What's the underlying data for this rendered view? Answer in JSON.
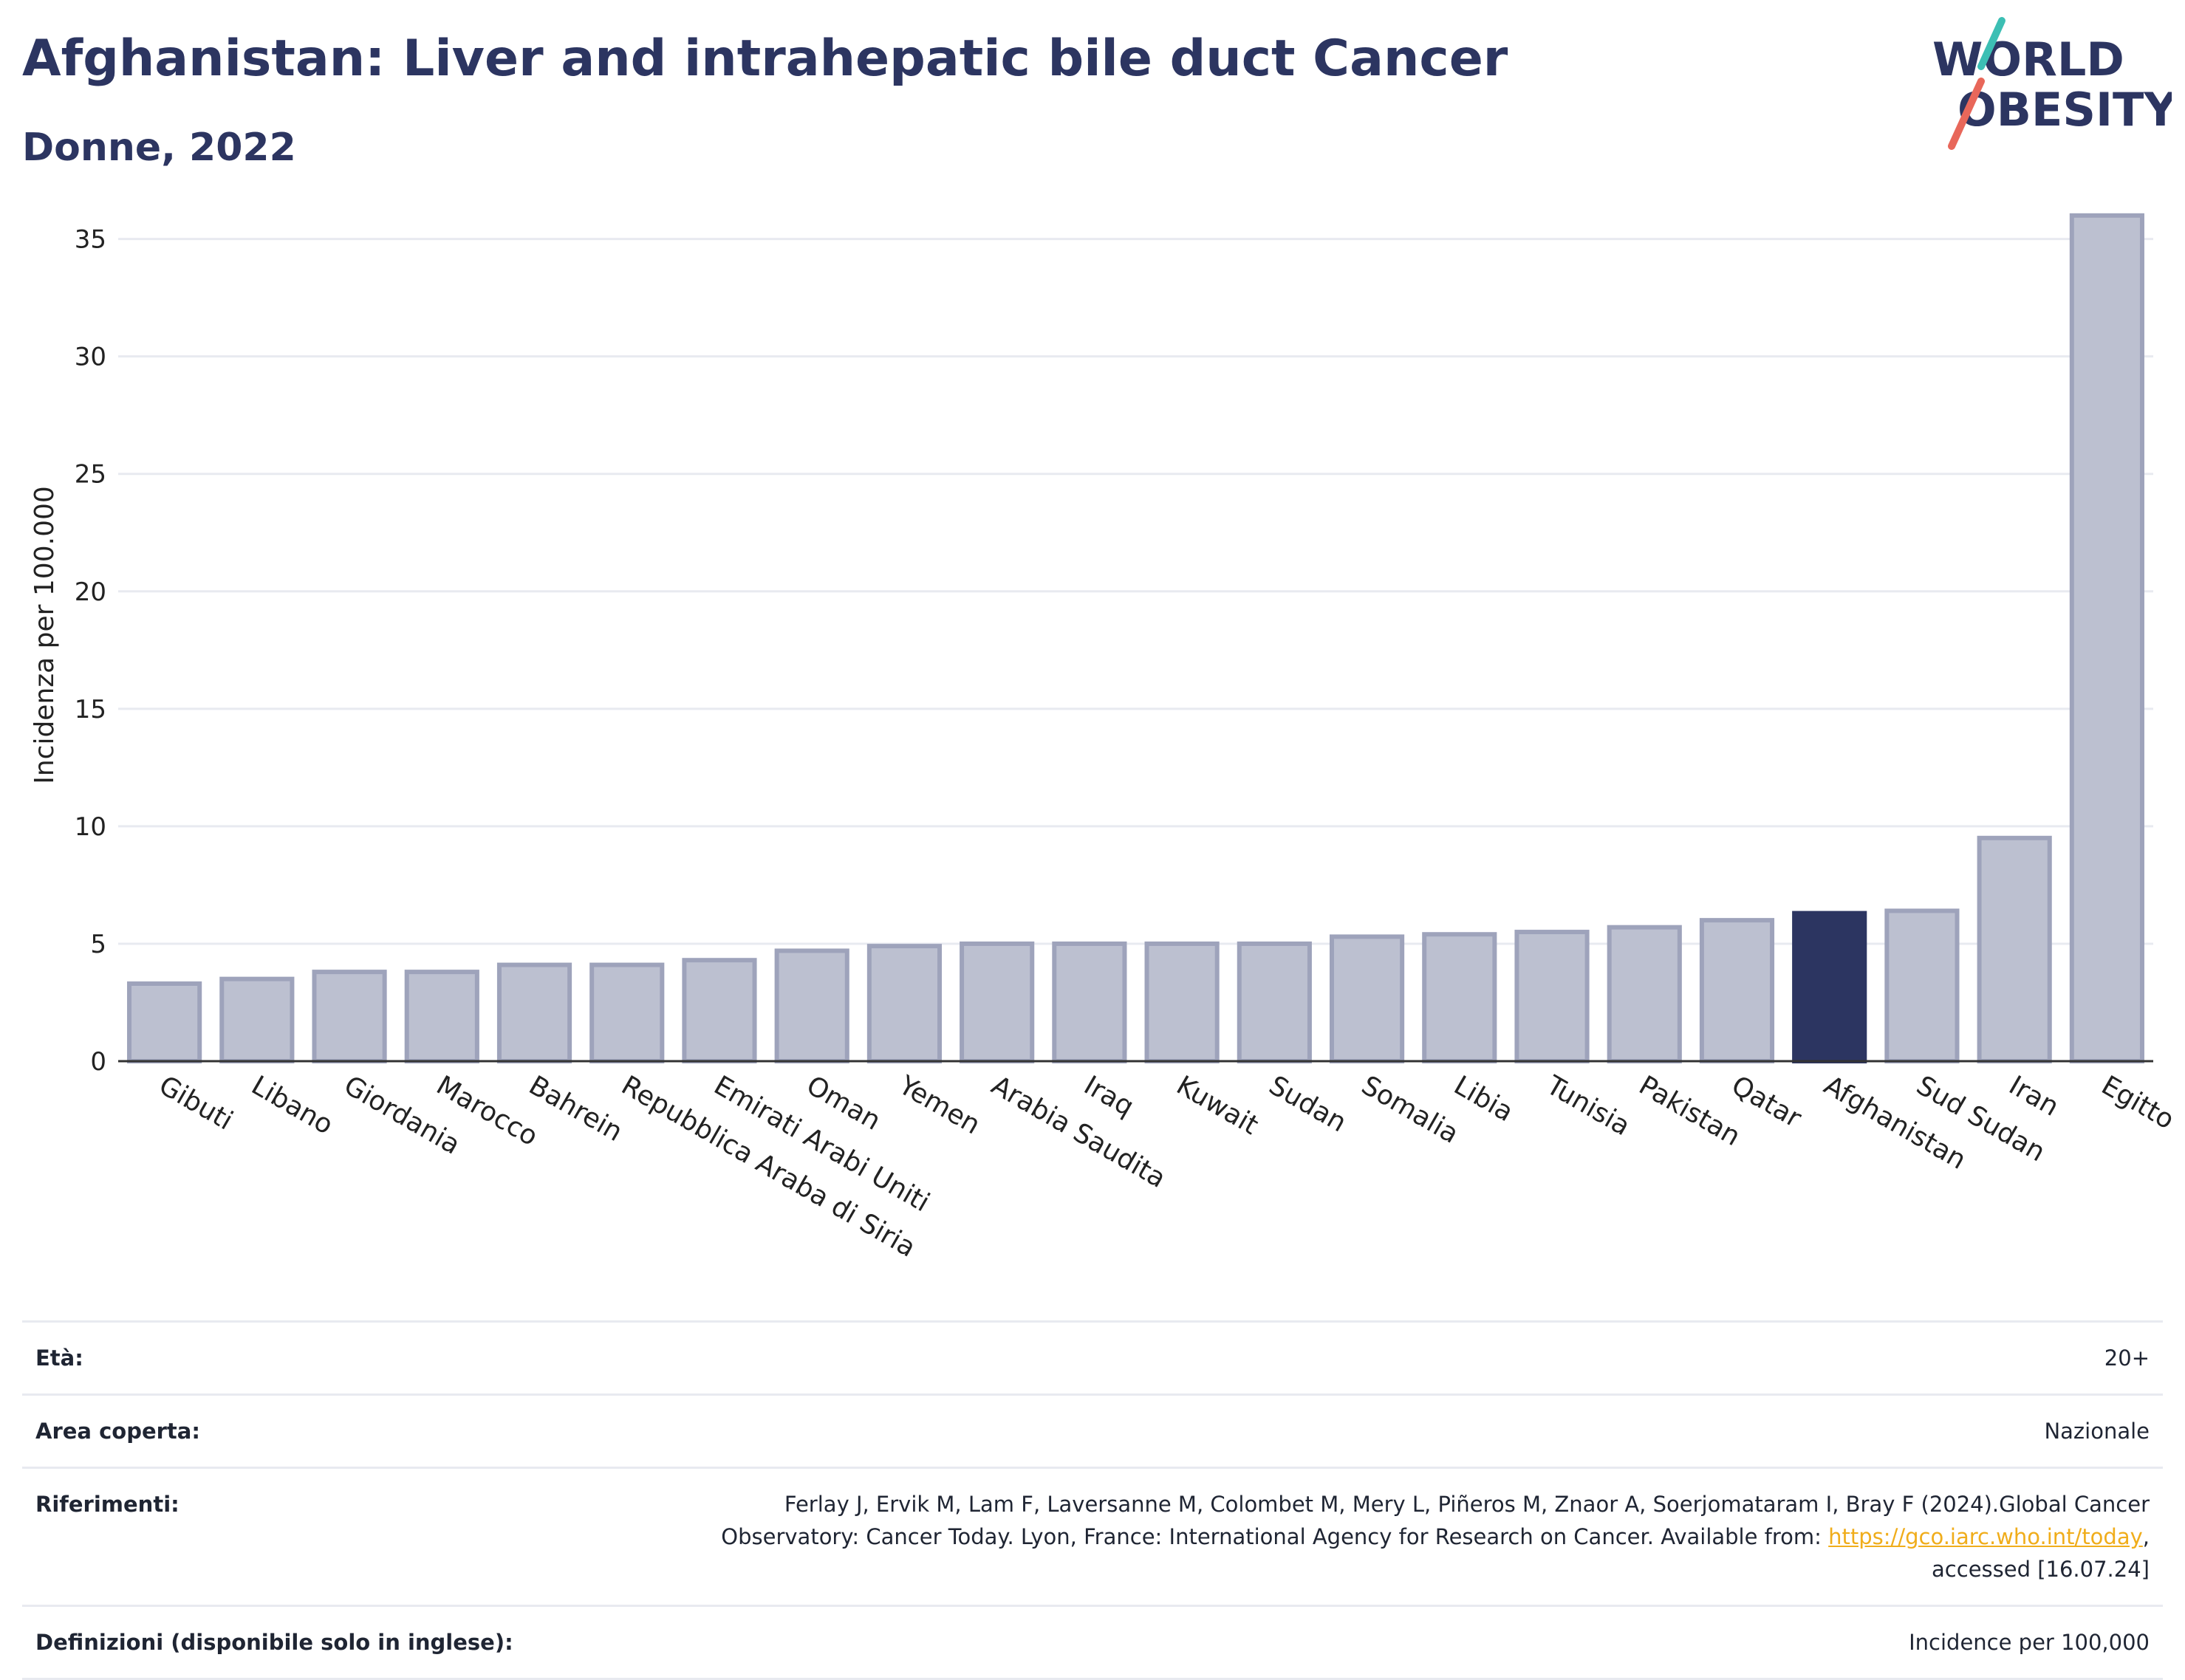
{
  "header": {
    "title": "Afghanistan: Liver and intrahepatic bile duct Cancer",
    "subtitle": "Donne, 2022",
    "logo_line1": "WORLD",
    "logo_line2": "OBESITY"
  },
  "colors": {
    "bar": "#bcc0d0",
    "bar_stroke": "#9ea3bb",
    "highlight": "#2c3561",
    "grid": "#e8eaf0",
    "logo_teal": "#3cbfb4",
    "logo_red": "#e8675a",
    "link": "#f0ad1b"
  },
  "chart_data": {
    "type": "bar",
    "ylabel": "Incidenza per 100.000",
    "ylim": [
      0,
      37
    ],
    "yticks": [
      0,
      5,
      10,
      15,
      20,
      25,
      30,
      35
    ],
    "grid": true,
    "highlight": "Afghanistan",
    "categories": [
      "Gibuti",
      "Libano",
      "Giordania",
      "Marocco",
      "Bahrein",
      "Repubblica Araba di Siria",
      "Emirati Arabi Uniti",
      "Oman",
      "Yemen",
      "Arabia Saudita",
      "Iraq",
      "Kuwait",
      "Sudan",
      "Somalia",
      "Libia",
      "Tunisia",
      "Pakistan",
      "Qatar",
      "Afghanistan",
      "Sud Sudan",
      "Iran",
      "Egitto"
    ],
    "values": [
      3.3,
      3.5,
      3.8,
      3.8,
      4.1,
      4.1,
      4.3,
      4.7,
      4.9,
      5.0,
      5.0,
      5.0,
      5.0,
      5.3,
      5.4,
      5.5,
      5.7,
      6.0,
      6.3,
      6.4,
      9.5,
      36.0
    ]
  },
  "meta": {
    "eta_label": "Età:",
    "eta_value": "20+",
    "area_label": "Area coperta:",
    "area_value": "Nazionale",
    "rif_label": "Riferimenti:",
    "rif_text1": "Ferlay J, Ervik M, Lam F, Laversanne M, Colombet M, Mery L, Piñeros M, Znaor A, Soerjomataram I, Bray F (2024).Global Cancer Observatory: Cancer Today. Lyon, France: International Agency for Research on Cancer. Available from: ",
    "rif_link": "https://gco.iarc.who.int/today",
    "rif_text2": ", accessed [16.07.24]",
    "def_label": "Definizioni (disponibile solo in inglese):",
    "def_value": "Incidence per 100,000"
  }
}
